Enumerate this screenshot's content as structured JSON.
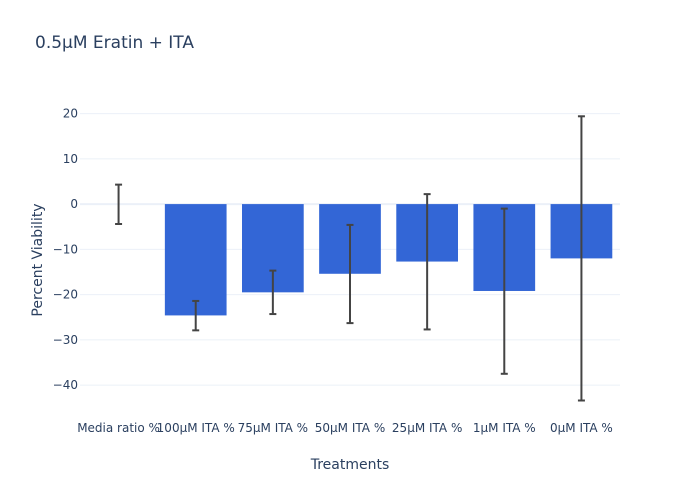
{
  "chart_data": {
    "type": "bar",
    "title": "0.5μM Eratin + ITA",
    "xlabel": "Treatments",
    "ylabel": "Percent Viability",
    "categories": [
      "Media ratio %",
      "100μM ITA %",
      "75μM ITA %",
      "50μM ITA %",
      "25μM ITA %",
      "1μM ITA %",
      "0μM ITA %"
    ],
    "values": [
      0,
      -24.6,
      -19.5,
      -15.4,
      -12.7,
      -19.2,
      -12.0
    ],
    "error_low": [
      -4.4,
      -27.9,
      -24.3,
      -26.3,
      -27.7,
      -37.5,
      -43.4
    ],
    "error_high": [
      4.3,
      -21.4,
      -14.7,
      -4.6,
      2.2,
      -1.0,
      19.4
    ],
    "ylim": [
      -45.5,
      23
    ],
    "yticks": [
      20,
      10,
      0,
      -10,
      -20,
      -30,
      -40
    ],
    "grid": true,
    "colors": {
      "bar": "#3366d6",
      "error_bar": "#444444",
      "grid": "#ebf0f8",
      "zeroline": "#ebf0f8"
    }
  }
}
